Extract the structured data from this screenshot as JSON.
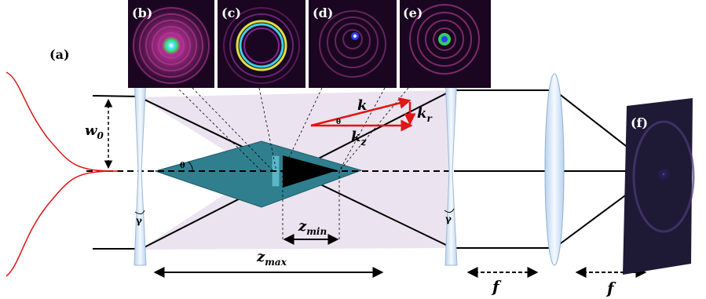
{
  "panel_labels": {
    "a": "(a)",
    "b": "(b)",
    "c": "(c)",
    "d": "(d)",
    "e": "(e)",
    "f": "(f)"
  },
  "symbols": {
    "w0_main": "w",
    "w0_sub": "0",
    "theta": "θ",
    "k": "k",
    "kz_main": "k",
    "kz_sub": "z",
    "kr_main": "k",
    "kr_sub": "r",
    "zmin_main": "z",
    "zmin_sub": "min",
    "zmax_main": "z",
    "zmax_sub": "max",
    "f": "f",
    "gamma": "γ"
  },
  "colors": {
    "beam_fill": "#ebe3ef",
    "bessel_zone": "#2f7f8f",
    "wave_vector": "#e01515",
    "gaussian_profile": "#e01515",
    "optic_fill": "#d6e6f6",
    "inset_background": "#1a0620"
  },
  "icons": {
    "axicon_1": "axicon-icon",
    "axicon_2": "axicon-icon",
    "lens": "lens-icon"
  }
}
